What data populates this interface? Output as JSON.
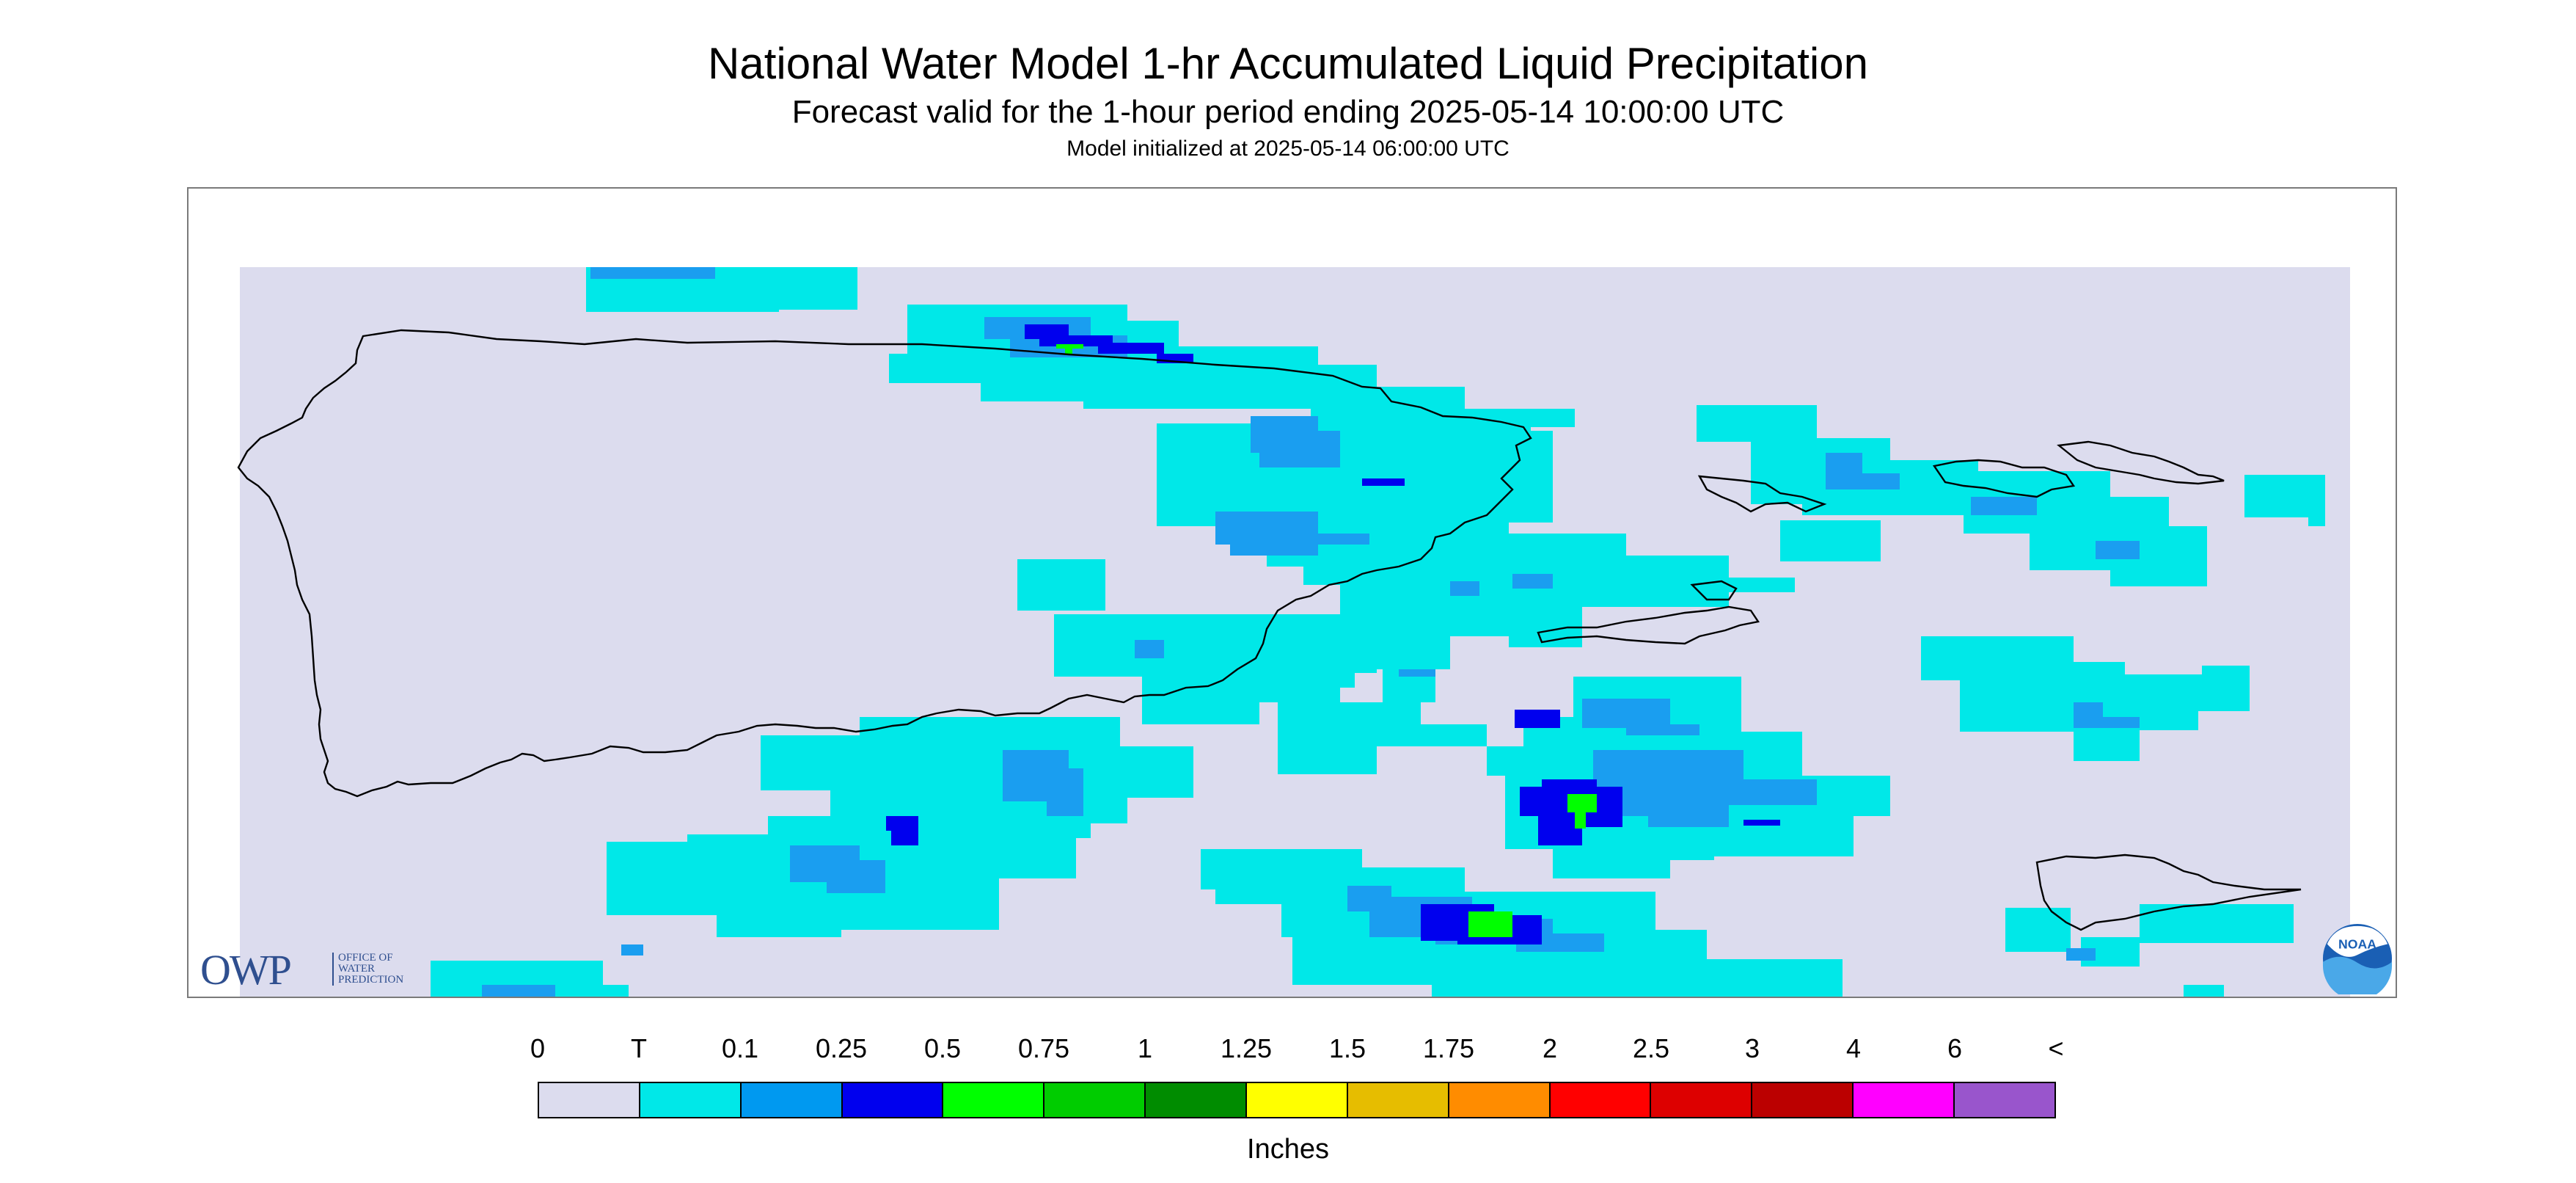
{
  "title": "National Water Model 1-hr Accumulated Liquid Precipitation",
  "subtitle": "Forecast valid for the 1-hour period ending 2025-05-14 10:00:00 UTC",
  "init_line": "Model initialized at 2025-05-14 06:00:00 UTC",
  "logos": {
    "owp_letters": "OWP",
    "owp_line1": "OFFICE OF",
    "owp_line2": "WATER",
    "owp_line3": "PREDICTION",
    "noaa": "NOAA"
  },
  "legend": {
    "labels": [
      "0",
      "T",
      "0.1",
      "0.25",
      "0.5",
      "0.75",
      "1",
      "1.25",
      "1.5",
      "1.75",
      "2",
      "2.5",
      "3",
      "4",
      "6",
      "<"
    ],
    "colors": [
      "#dcdcee",
      "#00e8e8",
      "#0099f0",
      "#0000ee",
      "#00ff00",
      "#00cc00",
      "#008c00",
      "#ffff00",
      "#e6bd00",
      "#ff8c00",
      "#ff0000",
      "#dd0000",
      "#bb0000",
      "#ff00ff",
      "#9955cc"
    ],
    "units": "Inches"
  },
  "map_colors": {
    "background": "#dcdcee",
    "trace": "#00e8e8",
    "light": "#1a9ef0",
    "medium": "#0000ee",
    "heavy": "#00ff00",
    "coast": "#000000"
  }
}
